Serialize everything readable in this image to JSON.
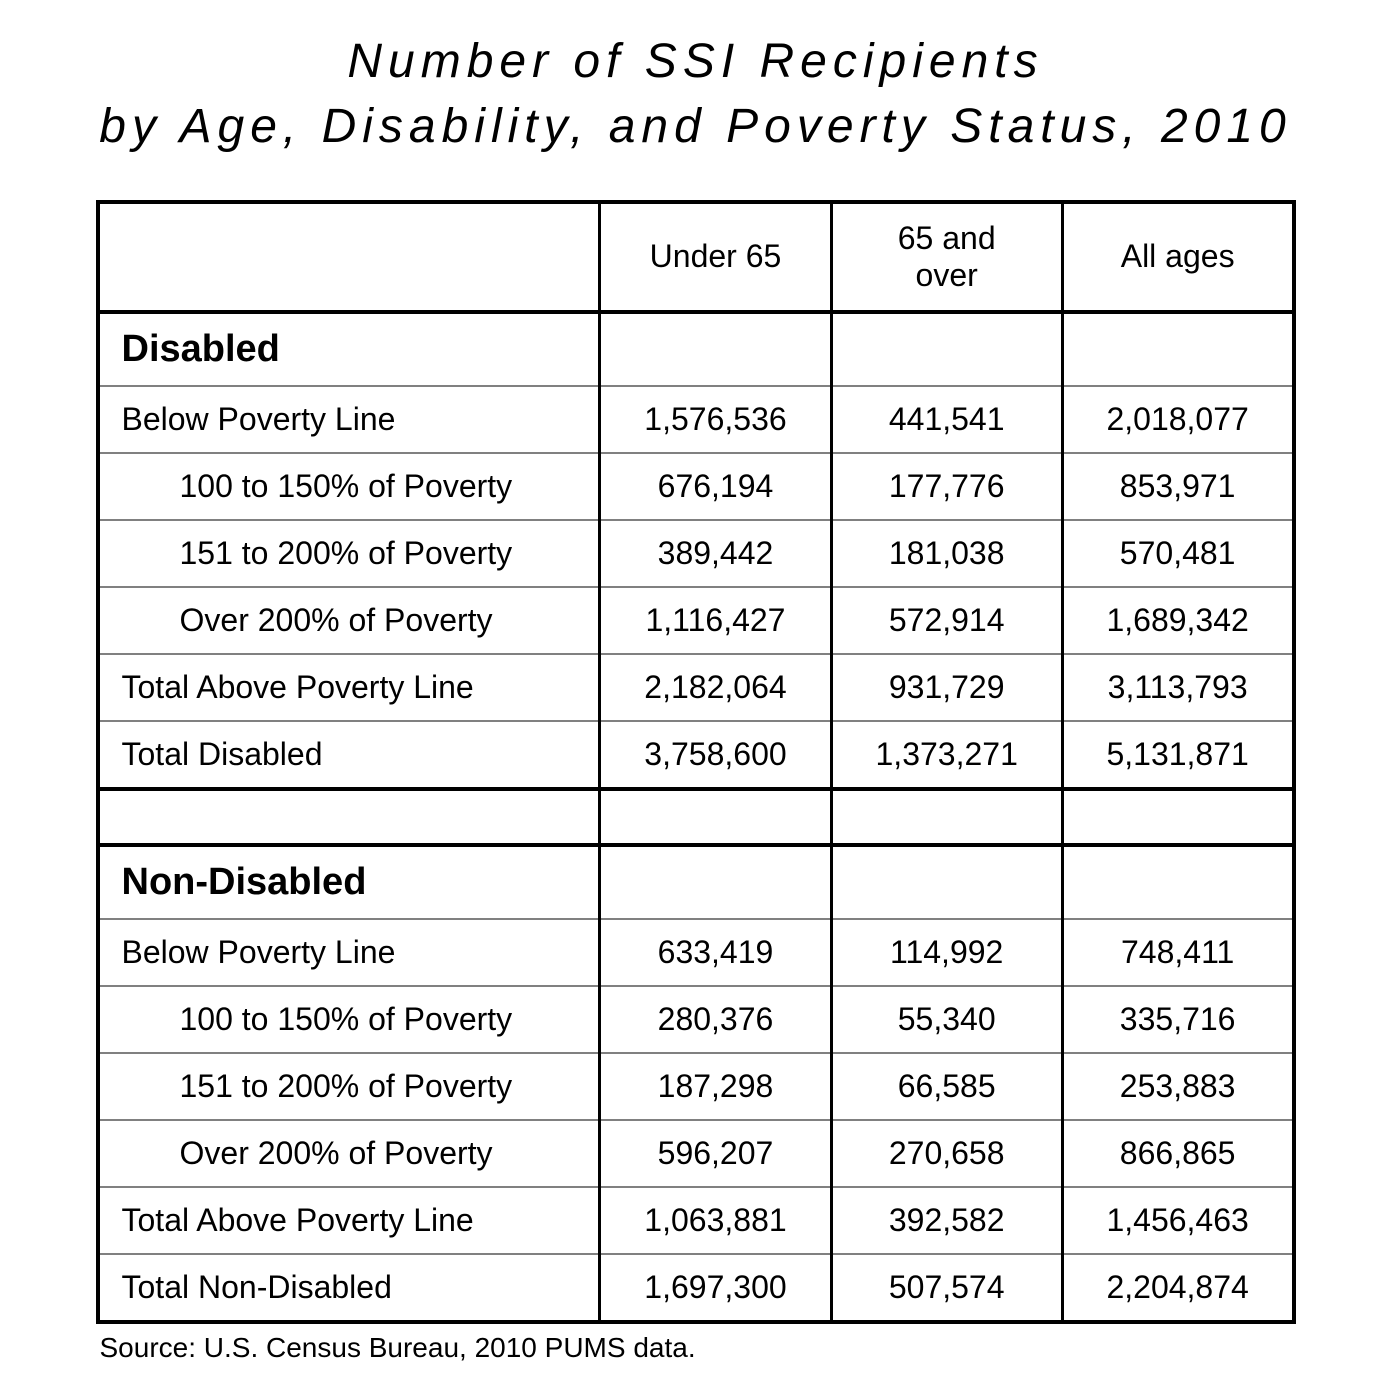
{
  "title_line1": "Number of SSI Recipients",
  "title_line2": "by Age, Disability, and Poverty Status, 2010",
  "source": "Source:  U.S. Census Bureau, 2010 PUMS data.",
  "table": {
    "type": "table",
    "background_color": "#ffffff",
    "border_color_outer": "#000000",
    "border_color_inner": "#808080",
    "title_fontsize": 48,
    "header_fontsize": 32,
    "section_fontsize": 38,
    "cell_fontsize": 32,
    "source_fontsize": 28,
    "columns": [
      "",
      "Under 65",
      "65 and over",
      "All ages"
    ],
    "column_widths_pct": [
      42,
      19.33,
      19.33,
      19.33
    ],
    "sections": [
      {
        "heading": "Disabled",
        "rows": [
          {
            "label": "Below Poverty Line",
            "indent": false,
            "values": [
              "1,576,536",
              "441,541",
              "2,018,077"
            ]
          },
          {
            "label": "100 to 150% of Poverty",
            "indent": true,
            "values": [
              "676,194",
              "177,776",
              "853,971"
            ]
          },
          {
            "label": "151 to 200% of Poverty",
            "indent": true,
            "values": [
              "389,442",
              "181,038",
              "570,481"
            ]
          },
          {
            "label": "Over 200% of Poverty",
            "indent": true,
            "values": [
              "1,116,427",
              "572,914",
              "1,689,342"
            ]
          },
          {
            "label": "Total Above Poverty Line",
            "indent": false,
            "values": [
              "2,182,064",
              "931,729",
              "3,113,793"
            ]
          },
          {
            "label": "Total Disabled",
            "indent": false,
            "values": [
              "3,758,600",
              "1,373,271",
              "5,131,871"
            ]
          }
        ]
      },
      {
        "heading": "Non-Disabled",
        "rows": [
          {
            "label": "Below Poverty Line",
            "indent": false,
            "values": [
              "633,419",
              "114,992",
              "748,411"
            ]
          },
          {
            "label": "100 to 150% of Poverty",
            "indent": true,
            "values": [
              "280,376",
              "55,340",
              "335,716"
            ]
          },
          {
            "label": "151 to 200% of Poverty",
            "indent": true,
            "values": [
              "187,298",
              "66,585",
              "253,883"
            ]
          },
          {
            "label": "Over 200% of Poverty",
            "indent": true,
            "values": [
              "596,207",
              "270,658",
              "866,865"
            ]
          },
          {
            "label": "Total Above Poverty Line",
            "indent": false,
            "values": [
              "1,063,881",
              "392,582",
              "1,456,463"
            ]
          },
          {
            "label": "Total Non-Disabled",
            "indent": false,
            "values": [
              "1,697,300",
              "507,574",
              "2,204,874"
            ]
          }
        ]
      }
    ]
  }
}
